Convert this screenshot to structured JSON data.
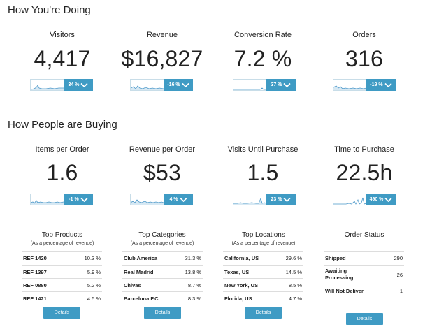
{
  "sections": {
    "doing_title": "How You're Doing",
    "buying_title": "How People are Buying"
  },
  "kpis": [
    {
      "label": "Visitors",
      "value": "4,417",
      "change": "34 %"
    },
    {
      "label": "Revenue",
      "value": "$16,827",
      "change": "-16 %"
    },
    {
      "label": "Conversion Rate",
      "value": "7.2 %",
      "change": "37 %"
    },
    {
      "label": "Orders",
      "value": "316",
      "change": "-19 %"
    },
    {
      "label": "Items per Order",
      "value": "1.6",
      "change": "-1 %"
    },
    {
      "label": "Revenue per Order",
      "value": "$53",
      "change": "4 %"
    },
    {
      "label": "Visits Until Purchase",
      "value": "1.5",
      "change": "23 %"
    },
    {
      "label": "Time to Purchase",
      "value": "22.5h",
      "change": "490 %"
    }
  ],
  "tables": [
    {
      "title": "Top Products",
      "subtitle": "(As a percentage of revenue)",
      "rows": [
        {
          "name": "REF 1420",
          "value": "10.3 %"
        },
        {
          "name": "REF 1397",
          "value": "5.9 %"
        },
        {
          "name": "REF 0880",
          "value": "5.2 %"
        },
        {
          "name": "REF 1421",
          "value": "4.5 %"
        }
      ],
      "button": "Details"
    },
    {
      "title": "Top Categories",
      "subtitle": "(As a percentage of revenue)",
      "rows": [
        {
          "name": "Club America",
          "value": "31.3 %"
        },
        {
          "name": "Real Madrid",
          "value": "13.8 %"
        },
        {
          "name": "Chivas",
          "value": "8.7 %"
        },
        {
          "name": "Barcelona F.C",
          "value": "8.3 %"
        }
      ],
      "button": "Details"
    },
    {
      "title": "Top Locations",
      "subtitle": "(As a percentage of revenue)",
      "rows": [
        {
          "name": "California, US",
          "value": "29.6 %"
        },
        {
          "name": "Texas, US",
          "value": "14.5 %"
        },
        {
          "name": "New York, US",
          "value": "8.5 %"
        },
        {
          "name": "Florida, US",
          "value": "4.7 %"
        }
      ],
      "button": "Details"
    },
    {
      "title": "Order Status",
      "subtitle": "",
      "rows": [
        {
          "name": "Shipped",
          "value": "290"
        },
        {
          "name": "Awaiting Processing",
          "value": "26"
        },
        {
          "name": "Will Not Deliver",
          "value": "1"
        }
      ],
      "button": "Details"
    }
  ],
  "colors": {
    "accent": "#3f9bc4",
    "spark_line": "#4a97c9",
    "spark_fill": "#d6e8f3"
  },
  "icons": {
    "badge_icon": "chevron-down-icon"
  }
}
